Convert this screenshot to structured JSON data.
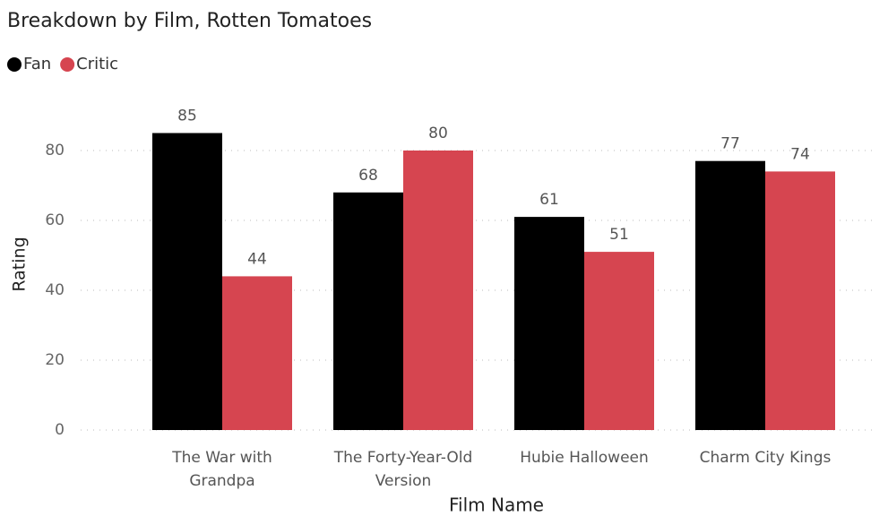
{
  "chart_data": {
    "type": "bar",
    "title": "Breakdown by Film, Rotten Tomatoes",
    "x_label": "Film Name",
    "y_label": "Rating",
    "categories": [
      "The War with Grandpa",
      "The Forty-Year-Old Version",
      "Hubie Halloween",
      "Charm City Kings"
    ],
    "series": [
      {
        "name": "Fan",
        "color": "#000000",
        "values": [
          85,
          68,
          61,
          77
        ]
      },
      {
        "name": "Critic",
        "color": "#d64550",
        "values": [
          44,
          80,
          51,
          74
        ]
      }
    ],
    "ylim": [
      0,
      95
    ],
    "yticks": [
      0,
      20,
      40,
      60,
      80
    ],
    "grid": true,
    "legend": "top-left"
  }
}
